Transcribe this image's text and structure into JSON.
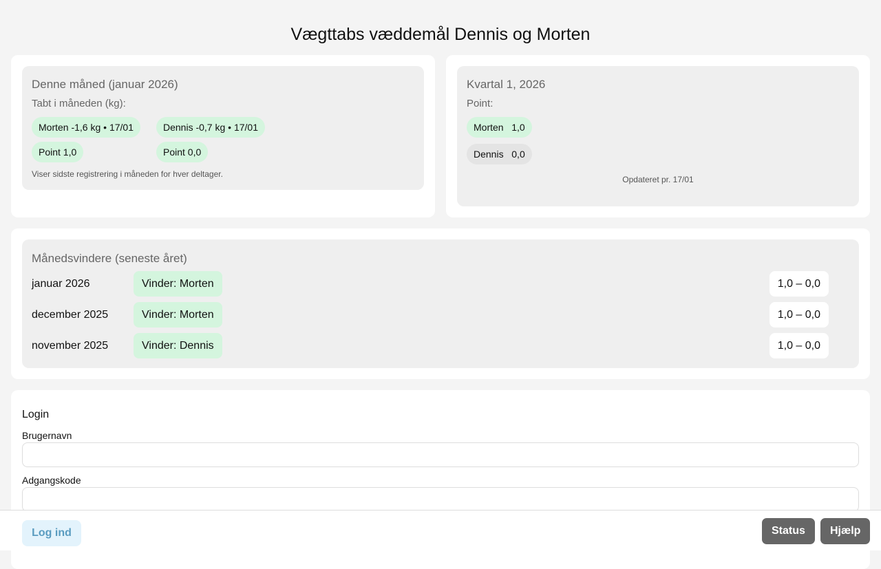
{
  "title": "Vægttabs væddemål Dennis og Morten",
  "month": {
    "heading": "Denne måned (januar 2026)",
    "sub": "Tabt i måneden (kg):",
    "morten": "Morten -1,6 kg • 17/01",
    "dennis": "Dennis -0,7 kg • 17/01",
    "morten_points": "Point 1,0",
    "dennis_points": "Point 0,0",
    "note": "Viser sidste registrering i måneden for hver deltager."
  },
  "quarter": {
    "heading": "Kvartal 1, 2026",
    "sub": "Point:",
    "rows": [
      {
        "name": "Morten",
        "points": "1,0"
      },
      {
        "name": "Dennis",
        "points": "0,0"
      }
    ],
    "updated": "Opdateret pr. 17/01"
  },
  "winners": {
    "heading": "Månedsvindere (seneste året)",
    "rows": [
      {
        "month": "januar 2026",
        "winner": "Vinder: Morten",
        "score": "1,0 – 0,0"
      },
      {
        "month": "december 2025",
        "winner": "Vinder: Morten",
        "score": "1,0 – 0,0"
      },
      {
        "month": "november 2025",
        "winner": "Vinder: Dennis",
        "score": "1,0 – 0,0"
      }
    ]
  },
  "login": {
    "heading": "Login",
    "username_label": "Brugernavn",
    "username_value": "",
    "password_label": "Adgangskode",
    "password_value": "",
    "submit": "Log ind"
  },
  "footer": {
    "status": "Status",
    "help": "Hjælp"
  }
}
